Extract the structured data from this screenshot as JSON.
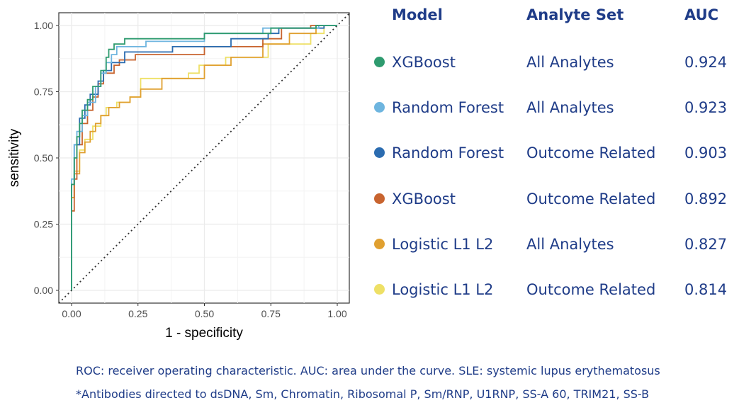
{
  "chart_data": {
    "type": "line",
    "title": "",
    "xlabel": "1 - specificity",
    "ylabel": "sensitivity",
    "xlim": [
      0,
      1
    ],
    "ylim": [
      0,
      1
    ],
    "grid": true,
    "x_ticks": [
      "0.00",
      "0.25",
      "0.50",
      "0.75",
      "1.00"
    ],
    "y_ticks": [
      "0.00",
      "0.25",
      "0.50",
      "0.75",
      "1.00"
    ],
    "reference_line": {
      "style": "dotted",
      "from": [
        0,
        0
      ],
      "to": [
        1,
        1
      ]
    },
    "series": [
      {
        "name": "XGBoost - All Analytes",
        "color": "#2e9b6f",
        "auc": 0.924,
        "points": [
          [
            0,
            0
          ],
          [
            0,
            0.4
          ],
          [
            0.01,
            0.4
          ],
          [
            0.01,
            0.5
          ],
          [
            0.02,
            0.5
          ],
          [
            0.02,
            0.58
          ],
          [
            0.03,
            0.58
          ],
          [
            0.03,
            0.63
          ],
          [
            0.04,
            0.63
          ],
          [
            0.04,
            0.68
          ],
          [
            0.06,
            0.68
          ],
          [
            0.06,
            0.72
          ],
          [
            0.08,
            0.72
          ],
          [
            0.08,
            0.77
          ],
          [
            0.11,
            0.77
          ],
          [
            0.11,
            0.83
          ],
          [
            0.13,
            0.83
          ],
          [
            0.13,
            0.88
          ],
          [
            0.14,
            0.88
          ],
          [
            0.14,
            0.91
          ],
          [
            0.16,
            0.91
          ],
          [
            0.16,
            0.93
          ],
          [
            0.2,
            0.93
          ],
          [
            0.2,
            0.95
          ],
          [
            0.5,
            0.95
          ],
          [
            0.5,
            0.97
          ],
          [
            0.75,
            0.97
          ],
          [
            0.75,
            0.99
          ],
          [
            0.92,
            0.99
          ],
          [
            0.92,
            1
          ],
          [
            1,
            1
          ]
        ]
      },
      {
        "name": "Random Forest - All Analytes",
        "color": "#6eb5df",
        "auc": 0.923,
        "points": [
          [
            0,
            0
          ],
          [
            0,
            0.42
          ],
          [
            0.01,
            0.42
          ],
          [
            0.01,
            0.55
          ],
          [
            0.02,
            0.55
          ],
          [
            0.02,
            0.6
          ],
          [
            0.04,
            0.6
          ],
          [
            0.04,
            0.66
          ],
          [
            0.06,
            0.66
          ],
          [
            0.06,
            0.71
          ],
          [
            0.09,
            0.71
          ],
          [
            0.09,
            0.77
          ],
          [
            0.11,
            0.77
          ],
          [
            0.11,
            0.82
          ],
          [
            0.13,
            0.82
          ],
          [
            0.13,
            0.86
          ],
          [
            0.15,
            0.86
          ],
          [
            0.15,
            0.89
          ],
          [
            0.17,
            0.89
          ],
          [
            0.17,
            0.92
          ],
          [
            0.28,
            0.92
          ],
          [
            0.28,
            0.94
          ],
          [
            0.5,
            0.94
          ],
          [
            0.5,
            0.97
          ],
          [
            0.72,
            0.97
          ],
          [
            0.72,
            0.99
          ],
          [
            0.93,
            0.99
          ],
          [
            0.93,
            1
          ],
          [
            1,
            1
          ]
        ]
      },
      {
        "name": "Random Forest - Outcome Related",
        "color": "#2b6cb0",
        "auc": 0.903,
        "points": [
          [
            0,
            0
          ],
          [
            0,
            0.4
          ],
          [
            0.01,
            0.4
          ],
          [
            0.01,
            0.55
          ],
          [
            0.03,
            0.55
          ],
          [
            0.03,
            0.65
          ],
          [
            0.05,
            0.65
          ],
          [
            0.05,
            0.7
          ],
          [
            0.07,
            0.7
          ],
          [
            0.07,
            0.74
          ],
          [
            0.1,
            0.74
          ],
          [
            0.1,
            0.79
          ],
          [
            0.12,
            0.79
          ],
          [
            0.12,
            0.83
          ],
          [
            0.15,
            0.83
          ],
          [
            0.15,
            0.86
          ],
          [
            0.2,
            0.86
          ],
          [
            0.2,
            0.9
          ],
          [
            0.38,
            0.9
          ],
          [
            0.38,
            0.92
          ],
          [
            0.6,
            0.92
          ],
          [
            0.6,
            0.95
          ],
          [
            0.74,
            0.95
          ],
          [
            0.74,
            0.97
          ],
          [
            0.78,
            0.97
          ],
          [
            0.78,
            0.99
          ],
          [
            0.95,
            0.99
          ],
          [
            0.95,
            1
          ],
          [
            1,
            1
          ]
        ]
      },
      {
        "name": "XGBoost - Outcome Related",
        "color": "#c8642f",
        "auc": 0.892,
        "points": [
          [
            0,
            0
          ],
          [
            0,
            0.3
          ],
          [
            0.01,
            0.3
          ],
          [
            0.01,
            0.42
          ],
          [
            0.02,
            0.42
          ],
          [
            0.02,
            0.55
          ],
          [
            0.04,
            0.55
          ],
          [
            0.04,
            0.63
          ],
          [
            0.06,
            0.63
          ],
          [
            0.06,
            0.68
          ],
          [
            0.08,
            0.68
          ],
          [
            0.08,
            0.73
          ],
          [
            0.1,
            0.73
          ],
          [
            0.1,
            0.78
          ],
          [
            0.12,
            0.78
          ],
          [
            0.12,
            0.82
          ],
          [
            0.16,
            0.82
          ],
          [
            0.16,
            0.85
          ],
          [
            0.18,
            0.85
          ],
          [
            0.18,
            0.87
          ],
          [
            0.24,
            0.87
          ],
          [
            0.24,
            0.89
          ],
          [
            0.5,
            0.89
          ],
          [
            0.5,
            0.92
          ],
          [
            0.72,
            0.92
          ],
          [
            0.72,
            0.95
          ],
          [
            0.79,
            0.95
          ],
          [
            0.79,
            0.99
          ],
          [
            0.9,
            0.99
          ],
          [
            0.9,
            1
          ],
          [
            1,
            1
          ]
        ]
      },
      {
        "name": "Logistic L1 L2 - All Analytes",
        "color": "#e0a030",
        "auc": 0.827,
        "points": [
          [
            0,
            0
          ],
          [
            0,
            0.35
          ],
          [
            0.01,
            0.35
          ],
          [
            0.01,
            0.44
          ],
          [
            0.03,
            0.44
          ],
          [
            0.03,
            0.52
          ],
          [
            0.05,
            0.52
          ],
          [
            0.05,
            0.56
          ],
          [
            0.07,
            0.56
          ],
          [
            0.07,
            0.6
          ],
          [
            0.09,
            0.6
          ],
          [
            0.09,
            0.63
          ],
          [
            0.11,
            0.63
          ],
          [
            0.11,
            0.66
          ],
          [
            0.14,
            0.66
          ],
          [
            0.14,
            0.69
          ],
          [
            0.18,
            0.69
          ],
          [
            0.18,
            0.71
          ],
          [
            0.22,
            0.71
          ],
          [
            0.22,
            0.73
          ],
          [
            0.26,
            0.73
          ],
          [
            0.26,
            0.76
          ],
          [
            0.34,
            0.76
          ],
          [
            0.34,
            0.8
          ],
          [
            0.5,
            0.8
          ],
          [
            0.5,
            0.85
          ],
          [
            0.6,
            0.85
          ],
          [
            0.6,
            0.88
          ],
          [
            0.72,
            0.88
          ],
          [
            0.72,
            0.93
          ],
          [
            0.82,
            0.93
          ],
          [
            0.82,
            0.97
          ],
          [
            0.92,
            0.97
          ],
          [
            0.92,
            1
          ],
          [
            1,
            1
          ]
        ]
      },
      {
        "name": "Logistic L1 L2 - Outcome Related",
        "color": "#eee066",
        "auc": 0.814,
        "points": [
          [
            0,
            0
          ],
          [
            0,
            0.35
          ],
          [
            0.01,
            0.35
          ],
          [
            0.01,
            0.45
          ],
          [
            0.03,
            0.45
          ],
          [
            0.03,
            0.53
          ],
          [
            0.05,
            0.53
          ],
          [
            0.05,
            0.57
          ],
          [
            0.08,
            0.57
          ],
          [
            0.08,
            0.62
          ],
          [
            0.11,
            0.62
          ],
          [
            0.11,
            0.66
          ],
          [
            0.13,
            0.66
          ],
          [
            0.13,
            0.69
          ],
          [
            0.17,
            0.69
          ],
          [
            0.17,
            0.71
          ],
          [
            0.22,
            0.71
          ],
          [
            0.22,
            0.73
          ],
          [
            0.26,
            0.73
          ],
          [
            0.26,
            0.8
          ],
          [
            0.44,
            0.8
          ],
          [
            0.44,
            0.82
          ],
          [
            0.48,
            0.82
          ],
          [
            0.48,
            0.85
          ],
          [
            0.58,
            0.85
          ],
          [
            0.58,
            0.88
          ],
          [
            0.74,
            0.88
          ],
          [
            0.74,
            0.93
          ],
          [
            0.9,
            0.93
          ],
          [
            0.9,
            0.97
          ],
          [
            0.95,
            0.97
          ],
          [
            0.95,
            1
          ],
          [
            1,
            1
          ]
        ]
      }
    ]
  },
  "legend_table": {
    "headers": {
      "model": "Model",
      "analyte_set": "Analyte Set",
      "auc": "AUC"
    },
    "rows": [
      {
        "color": "#2e9b6f",
        "model": "XGBoost",
        "analyte_set": "All Analytes",
        "auc": "0.924"
      },
      {
        "color": "#6eb5df",
        "model": "Random Forest",
        "analyte_set": "All Analytes",
        "auc": "0.923"
      },
      {
        "color": "#2b6cb0",
        "model": "Random Forest",
        "analyte_set": "Outcome Related",
        "auc": "0.903"
      },
      {
        "color": "#c8642f",
        "model": "XGBoost",
        "analyte_set": "Outcome Related",
        "auc": "0.892"
      },
      {
        "color": "#e0a030",
        "model": "Logistic L1 L2",
        "analyte_set": "All Analytes",
        "auc": "0.827"
      },
      {
        "color": "#eee066",
        "model": "Logistic L1 L2",
        "analyte_set": "Outcome Related",
        "auc": "0.814"
      }
    ]
  },
  "footnotes": {
    "line1": "ROC: receiver operating characteristic. AUC: area under the curve. SLE: systemic lupus erythematosus",
    "line2": "*Antibodies directed to dsDNA, Sm, Chromatin, Ribosomal P, Sm/RNP, U1RNP, SS-A 60, TRIM21, SS-B"
  },
  "colors": {
    "text_accent": "#1f3c88",
    "grid": "#ebebeb"
  }
}
